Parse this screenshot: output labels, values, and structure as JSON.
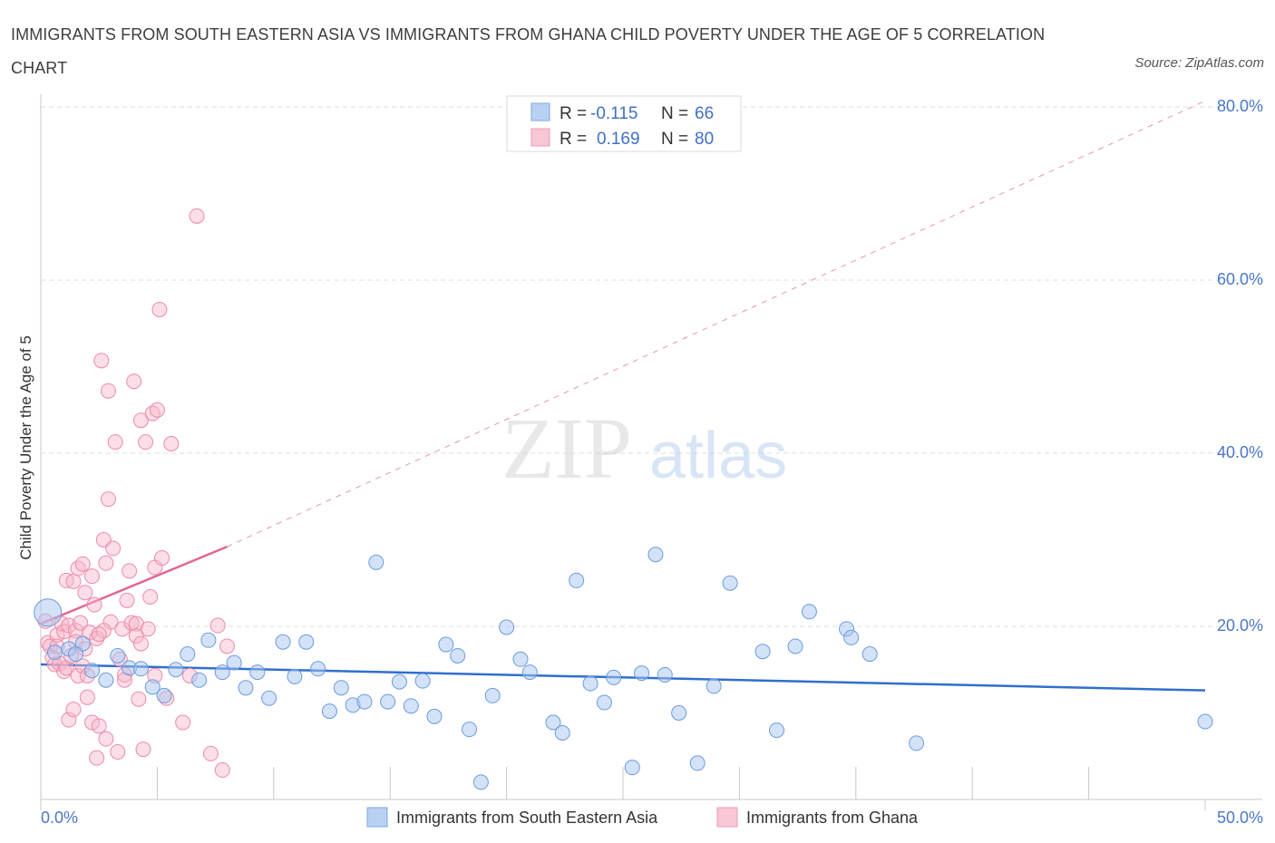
{
  "title": "IMMIGRANTS FROM SOUTH EASTERN ASIA VS IMMIGRANTS FROM GHANA CHILD POVERTY UNDER THE AGE OF 5 CORRELATION CHART",
  "source": "Source: ZipAtlas.com",
  "watermark": {
    "zip": "ZIP",
    "atlas": "atlas"
  },
  "legend": {
    "r_label": "R =",
    "n_label": "N =",
    "blue": {
      "r": "-0.115",
      "n": "66"
    },
    "pink": {
      "r": "0.169",
      "n": "80"
    }
  },
  "colors": {
    "blue_fill": "#a8c6ef",
    "blue_stroke": "#6b9be0",
    "blue_line": "#2f6fce",
    "pink_fill": "#f6b6c9",
    "pink_stroke": "#ee8aa8",
    "pink_line": "#e06690",
    "grid": "#dddddd",
    "tick": "#4a78c8"
  },
  "chart_data": {
    "type": "scatter",
    "xlabel": "",
    "ylabel": "Child Poverty Under the Age of 5",
    "xlim": [
      0,
      50
    ],
    "ylim": [
      0,
      80
    ],
    "x_tick_labels": [
      "0.0%",
      "50.0%"
    ],
    "y_ticks": [
      20,
      40,
      60,
      80
    ],
    "y_tick_labels": [
      "20.0%",
      "40.0%",
      "60.0%",
      "80.0%"
    ],
    "grid": true,
    "legend_position": "top-center",
    "series": [
      {
        "name": "Immigrants from South Eastern Asia",
        "color": "#a8c6ef",
        "trend": {
          "x": [
            0,
            50
          ],
          "y": [
            15.6,
            12.6
          ]
        },
        "points": [
          [
            0.3,
            21.6
          ],
          [
            1.2,
            17.4
          ],
          [
            1.8,
            18.0
          ],
          [
            2.2,
            14.9
          ],
          [
            2.8,
            13.8
          ],
          [
            3.3,
            16.6
          ],
          [
            3.8,
            15.2
          ],
          [
            4.3,
            15.1
          ],
          [
            4.8,
            13.0
          ],
          [
            5.3,
            12.0
          ],
          [
            5.8,
            15.0
          ],
          [
            6.3,
            16.8
          ],
          [
            6.8,
            13.8
          ],
          [
            7.2,
            18.4
          ],
          [
            7.8,
            14.7
          ],
          [
            8.3,
            15.8
          ],
          [
            8.8,
            12.9
          ],
          [
            9.3,
            14.7
          ],
          [
            9.8,
            11.7
          ],
          [
            10.4,
            18.2
          ],
          [
            10.9,
            14.2
          ],
          [
            11.4,
            18.2
          ],
          [
            11.9,
            15.1
          ],
          [
            12.4,
            10.2
          ],
          [
            12.9,
            12.9
          ],
          [
            13.4,
            10.9
          ],
          [
            13.9,
            11.3
          ],
          [
            14.4,
            27.4
          ],
          [
            14.9,
            11.3
          ],
          [
            15.4,
            13.6
          ],
          [
            15.9,
            10.8
          ],
          [
            16.4,
            13.7
          ],
          [
            16.9,
            9.6
          ],
          [
            17.4,
            17.9
          ],
          [
            17.9,
            16.6
          ],
          [
            18.4,
            8.1
          ],
          [
            18.9,
            2.0
          ],
          [
            19.4,
            12.0
          ],
          [
            20.0,
            19.9
          ],
          [
            20.6,
            16.2
          ],
          [
            21.0,
            14.7
          ],
          [
            22.0,
            8.9
          ],
          [
            22.4,
            7.7
          ],
          [
            23.0,
            25.3
          ],
          [
            23.6,
            13.4
          ],
          [
            24.2,
            11.2
          ],
          [
            24.6,
            14.1
          ],
          [
            25.4,
            3.7
          ],
          [
            25.8,
            14.6
          ],
          [
            26.4,
            28.3
          ],
          [
            26.8,
            14.4
          ],
          [
            27.4,
            10.0
          ],
          [
            28.2,
            4.2
          ],
          [
            28.9,
            13.1
          ],
          [
            29.6,
            25.0
          ],
          [
            31.0,
            17.1
          ],
          [
            31.6,
            8.0
          ],
          [
            32.4,
            17.7
          ],
          [
            33.0,
            21.7
          ],
          [
            34.6,
            19.7
          ],
          [
            34.8,
            18.7
          ],
          [
            35.6,
            16.8
          ],
          [
            37.6,
            6.5
          ],
          [
            50.0,
            9.0
          ],
          [
            0.6,
            17.0
          ],
          [
            1.5,
            16.8
          ]
        ]
      },
      {
        "name": "Immigrants from Ghana",
        "color": "#f6b6c9",
        "trend": {
          "x": [
            0,
            8
          ],
          "y": [
            20.3,
            29.2
          ],
          "dashed_extension": {
            "x": [
              8,
              50
            ],
            "y": [
              29.2,
              80.7
            ]
          }
        },
        "points": [
          [
            0.2,
            20.6
          ],
          [
            0.3,
            18.1
          ],
          [
            0.4,
            17.7
          ],
          [
            0.5,
            16.4
          ],
          [
            0.6,
            15.6
          ],
          [
            0.7,
            19.0
          ],
          [
            0.8,
            15.7
          ],
          [
            0.9,
            20.3
          ],
          [
            1.0,
            19.4
          ],
          [
            1.0,
            14.8
          ],
          [
            1.1,
            15.2
          ],
          [
            1.1,
            25.3
          ],
          [
            1.2,
            20.1
          ],
          [
            1.2,
            9.2
          ],
          [
            1.3,
            16.6
          ],
          [
            1.4,
            25.2
          ],
          [
            1.4,
            10.4
          ],
          [
            1.5,
            19.5
          ],
          [
            1.5,
            18.2
          ],
          [
            1.6,
            14.3
          ],
          [
            1.6,
            26.7
          ],
          [
            1.7,
            20.4
          ],
          [
            1.8,
            27.2
          ],
          [
            1.8,
            15.4
          ],
          [
            1.9,
            23.9
          ],
          [
            2.0,
            14.3
          ],
          [
            2.0,
            11.8
          ],
          [
            2.1,
            19.3
          ],
          [
            2.2,
            25.8
          ],
          [
            2.2,
            8.9
          ],
          [
            2.3,
            22.5
          ],
          [
            2.4,
            18.6
          ],
          [
            2.4,
            4.8
          ],
          [
            2.5,
            8.5
          ],
          [
            2.6,
            50.7
          ],
          [
            2.7,
            30.0
          ],
          [
            2.8,
            27.3
          ],
          [
            2.8,
            7.0
          ],
          [
            2.9,
            34.7
          ],
          [
            2.9,
            47.2
          ],
          [
            3.0,
            20.5
          ],
          [
            3.1,
            29.0
          ],
          [
            3.2,
            41.3
          ],
          [
            3.3,
            5.5
          ],
          [
            3.5,
            19.7
          ],
          [
            3.6,
            14.4
          ],
          [
            3.7,
            23.0
          ],
          [
            3.8,
            26.4
          ],
          [
            3.9,
            20.4
          ],
          [
            4.0,
            48.3
          ],
          [
            4.1,
            20.3
          ],
          [
            4.2,
            11.6
          ],
          [
            4.3,
            43.8
          ],
          [
            4.4,
            5.8
          ],
          [
            4.5,
            41.3
          ],
          [
            4.6,
            19.7
          ],
          [
            4.7,
            23.4
          ],
          [
            4.8,
            44.6
          ],
          [
            4.9,
            26.8
          ],
          [
            4.9,
            14.3
          ],
          [
            5.0,
            45.0
          ],
          [
            5.1,
            56.6
          ],
          [
            5.2,
            27.9
          ],
          [
            5.4,
            11.7
          ],
          [
            5.6,
            41.1
          ],
          [
            6.1,
            8.9
          ],
          [
            6.4,
            14.3
          ],
          [
            6.7,
            67.4
          ],
          [
            7.3,
            5.3
          ],
          [
            7.8,
            3.4
          ],
          [
            7.6,
            20.1
          ],
          [
            8.0,
            17.7
          ],
          [
            3.4,
            16.2
          ],
          [
            2.7,
            19.5
          ],
          [
            1.9,
            17.4
          ],
          [
            4.1,
            18.9
          ],
          [
            4.3,
            18.0
          ],
          [
            0.7,
            17.7
          ],
          [
            3.6,
            13.8
          ],
          [
            2.5,
            19.1
          ]
        ]
      }
    ],
    "bottom_legend": [
      "Immigrants from South Eastern Asia",
      "Immigrants from Ghana"
    ]
  }
}
